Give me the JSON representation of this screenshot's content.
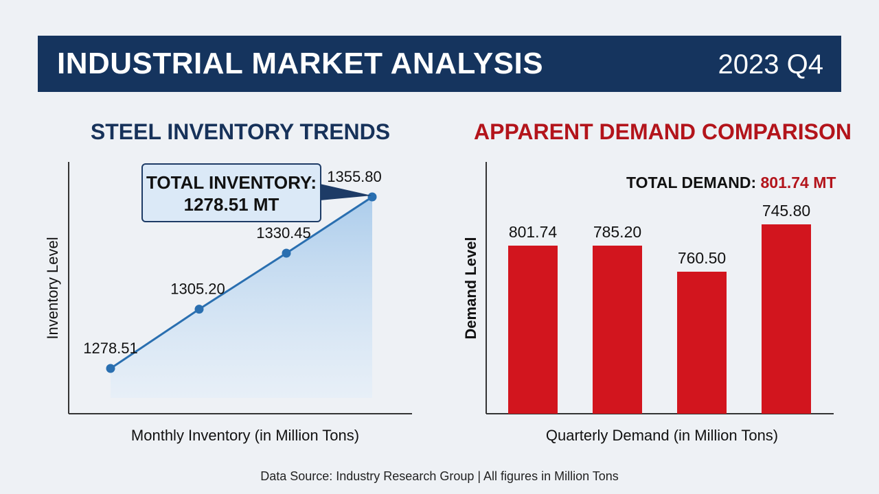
{
  "header": {
    "title": "INDUSTRIAL MARKET ANALYSIS",
    "period": "2023 Q4"
  },
  "colors": {
    "header_bg": "#15345e",
    "line": "#2a6fb0",
    "area": "#bcd6ef",
    "bar": "#d2151e",
    "title_navy": "#17325a",
    "title_red": "#b3141b"
  },
  "chart_data": [
    {
      "type": "area",
      "title": "STEEL INVENTORY TRENDS",
      "xlabel": "Monthly Inventory (in Million Tons)",
      "ylabel": "Inventory Level",
      "values": [
        1278.51,
        1305.2,
        1330.45,
        1355.8
      ],
      "value_labels": [
        "1278.51",
        "1305.20",
        "1330.45",
        "1355.80"
      ],
      "callout": {
        "label": "TOTAL INVENTORY:",
        "value": "1278.51 MT"
      },
      "grid": false
    },
    {
      "type": "bar",
      "title": "APPARENT DEMAND COMPARISON",
      "xlabel": "Quarterly Demand (in Million Tons)",
      "ylabel": "Demand Level",
      "values": [
        801.74,
        785.2,
        760.5,
        745.8
      ],
      "value_labels": [
        "801.74",
        "785.20",
        "760.50",
        "745.80"
      ],
      "total": {
        "label": "TOTAL DEMAND:",
        "value": "801.74 MT"
      },
      "grid": false
    }
  ],
  "footer": {
    "source": "Data Source: Industry Research Group | All figures in Million Tons"
  }
}
